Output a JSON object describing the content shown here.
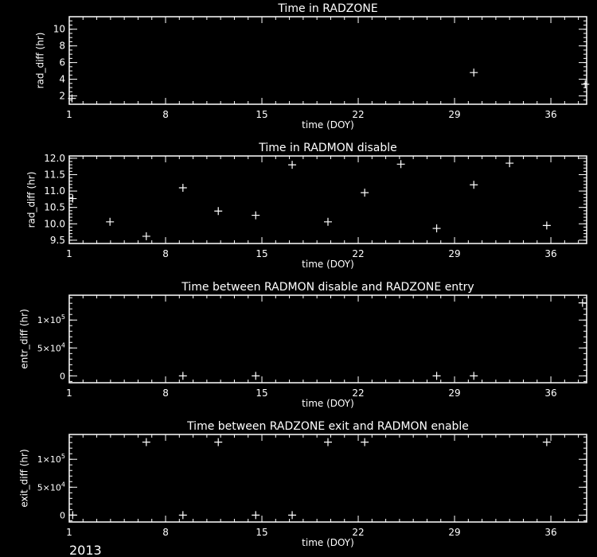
{
  "footer_label": "2013",
  "colors": {
    "background": "#000000",
    "foreground": "#ffffff"
  },
  "chart_data": [
    {
      "type": "scatter",
      "title": "Time in RADZONE",
      "xlabel": "time (DOY)",
      "ylabel": "rad_diff (hr)",
      "xlim": [
        1,
        38.6
      ],
      "ylim": [
        1.0,
        11.5
      ],
      "xticks": [
        1,
        8,
        15,
        22,
        29,
        36
      ],
      "xtick_labels": [
        "1",
        "8",
        "15",
        "22",
        "29",
        "36"
      ],
      "yticks": [
        2,
        4,
        6,
        8,
        10
      ],
      "ytick_labels": [
        "2",
        "4",
        "6",
        "8",
        "10"
      ],
      "marker": "plus",
      "grid": false,
      "points": [
        [
          1.2,
          1.7
        ],
        [
          30.4,
          4.8
        ],
        [
          38.5,
          3.4
        ]
      ]
    },
    {
      "type": "scatter",
      "title": "Time in RADMON disable",
      "xlabel": "time (DOY)",
      "ylabel": "rad_diff (hr)",
      "xlim": [
        1,
        38.6
      ],
      "ylim": [
        9.4,
        12.07
      ],
      "xticks": [
        1,
        8,
        15,
        22,
        29,
        36
      ],
      "xtick_labels": [
        "1",
        "8",
        "15",
        "22",
        "29",
        "36"
      ],
      "yticks": [
        9.5,
        10.0,
        10.5,
        11.0,
        11.5,
        12.0
      ],
      "ytick_labels": [
        "9.5",
        "10.0",
        "10.5",
        "11.0",
        "11.5",
        "12.0"
      ],
      "marker": "plus",
      "grid": false,
      "points": [
        [
          1.25,
          10.77
        ],
        [
          3.96,
          10.06
        ],
        [
          6.6,
          9.62
        ],
        [
          9.26,
          11.1
        ],
        [
          11.83,
          10.39
        ],
        [
          14.55,
          10.26
        ],
        [
          17.2,
          11.8
        ],
        [
          19.8,
          10.06
        ],
        [
          22.47,
          10.95
        ],
        [
          25.1,
          11.82
        ],
        [
          27.7,
          9.86
        ],
        [
          30.4,
          11.19
        ],
        [
          33.0,
          11.85
        ],
        [
          35.7,
          9.95
        ]
      ]
    },
    {
      "type": "scatter",
      "title": "Time between RADMON disable and RADZONE entry",
      "xlabel": "time (DOY)",
      "ylabel": "entr_diff (hr)",
      "xlim": [
        1,
        38.6
      ],
      "ylim": [
        -12300,
        144500
      ],
      "xticks": [
        1,
        8,
        15,
        22,
        29,
        36
      ],
      "xtick_labels": [
        "1",
        "8",
        "15",
        "22",
        "29",
        "36"
      ],
      "yticks": [
        0,
        50000,
        100000
      ],
      "ytick_labels": [
        [
          "0",
          ""
        ],
        [
          "5×10",
          "4"
        ],
        [
          "1×10",
          "5"
        ]
      ],
      "marker": "plus",
      "grid": false,
      "points": [
        [
          9.26,
          0
        ],
        [
          14.55,
          0
        ],
        [
          27.7,
          0
        ],
        [
          30.4,
          0
        ],
        [
          38.3,
          130800
        ]
      ]
    },
    {
      "type": "scatter",
      "title": "Time between RADZONE exit and RADMON enable",
      "xlabel": "time (DOY)",
      "ylabel": "exit_diff (hr)",
      "xlim": [
        1,
        38.6
      ],
      "ylim": [
        -12300,
        144500
      ],
      "xticks": [
        1,
        8,
        15,
        22,
        29,
        36
      ],
      "xtick_labels": [
        "1",
        "8",
        "15",
        "22",
        "29",
        "36"
      ],
      "yticks": [
        0,
        50000,
        100000
      ],
      "ytick_labels": [
        [
          "0",
          ""
        ],
        [
          "5×10",
          "4"
        ],
        [
          "1×10",
          "5"
        ]
      ],
      "marker": "plus",
      "grid": false,
      "points": [
        [
          1.25,
          0
        ],
        [
          6.6,
          130800
        ],
        [
          9.26,
          0
        ],
        [
          11.83,
          130800
        ],
        [
          14.55,
          0
        ],
        [
          17.2,
          0
        ],
        [
          19.8,
          130800
        ],
        [
          22.47,
          130800
        ],
        [
          35.7,
          130800
        ]
      ]
    }
  ]
}
